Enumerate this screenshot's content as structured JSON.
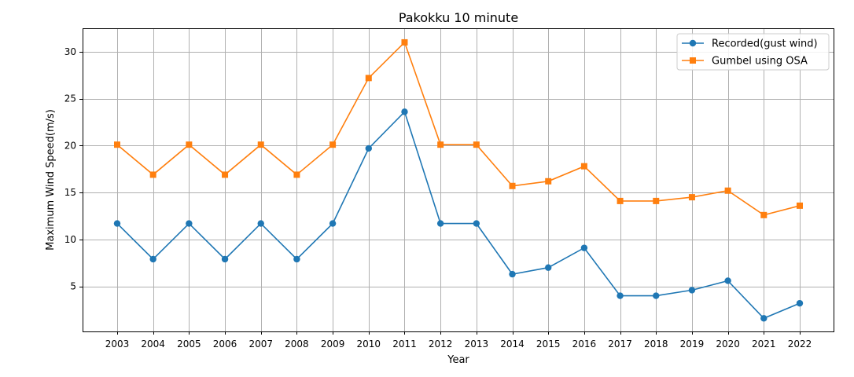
{
  "chart_data": {
    "type": "line",
    "title": "Pakokku 10 minute",
    "xlabel": "Year",
    "ylabel": "Maximum Wind Speed(m/s)",
    "categories": [
      "2003",
      "2004",
      "2005",
      "2006",
      "2007",
      "2008",
      "2009",
      "2010",
      "2011",
      "2012",
      "2013",
      "2014",
      "2015",
      "2016",
      "2017",
      "2018",
      "2019",
      "2020",
      "2021",
      "2022"
    ],
    "yticks": [
      5,
      10,
      15,
      20,
      25,
      30
    ],
    "ylim": [
      0.2,
      32.5
    ],
    "grid": true,
    "legend_position": "top-right",
    "series": [
      {
        "name": "Recorded(gust wind)",
        "color": "#1f77b4",
        "marker": "circle",
        "values": [
          11.7,
          7.9,
          11.7,
          7.9,
          11.7,
          7.9,
          11.7,
          19.7,
          23.6,
          11.7,
          11.7,
          6.3,
          7.0,
          9.1,
          4.0,
          4.0,
          4.6,
          5.6,
          1.6,
          3.2
        ]
      },
      {
        "name": "Gumbel using OSA",
        "color": "#ff7f0e",
        "marker": "square",
        "values": [
          20.1,
          16.9,
          20.1,
          16.9,
          20.1,
          16.9,
          20.1,
          27.2,
          31.0,
          20.1,
          20.1,
          15.7,
          16.2,
          17.8,
          14.1,
          14.1,
          14.5,
          15.2,
          12.6,
          13.6
        ]
      }
    ]
  }
}
